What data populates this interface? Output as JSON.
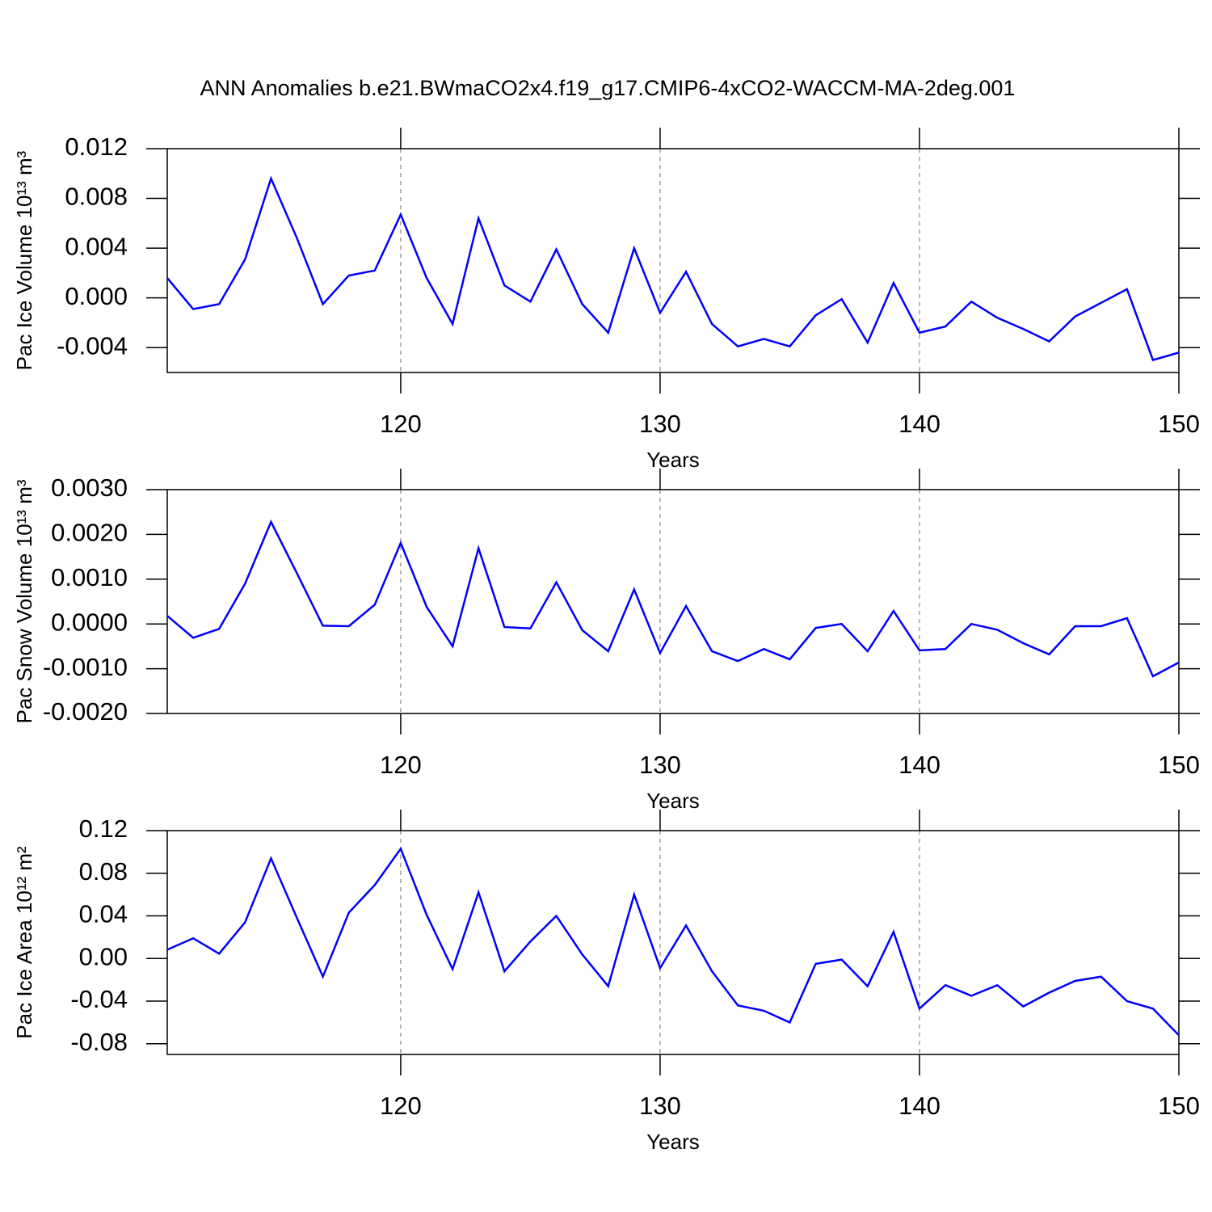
{
  "chart_data": [
    {
      "type": "line",
      "title": "ANN Anomalies b.e21.BWmaCO2x4.f19_g17.CMIP6-4xCO2-WACCM-MA-2deg.001",
      "xlabel": "Years",
      "ylabel": "Pac Ice Volume 10¹³ m³",
      "color": "#0000ff",
      "x": [
        111,
        112,
        113,
        114,
        115,
        116,
        117,
        118,
        119,
        120,
        121,
        122,
        123,
        124,
        125,
        126,
        127,
        128,
        129,
        130,
        131,
        132,
        133,
        134,
        135,
        136,
        137,
        138,
        139,
        140,
        141,
        142,
        143,
        144,
        145,
        146,
        147,
        148,
        149,
        150
      ],
      "values": [
        0.0016,
        -0.0009,
        -0.0005,
        0.0031,
        0.0096,
        0.0048,
        -0.0005,
        0.0018,
        0.0022,
        0.0067,
        0.0016,
        -0.0021,
        0.0064,
        0.001,
        -0.0003,
        0.0039,
        -0.0005,
        -0.0028,
        0.004,
        -0.0012,
        0.0021,
        -0.0021,
        -0.0039,
        -0.0033,
        -0.0039,
        -0.0014,
        -0.0001,
        -0.0036,
        0.0012,
        -0.0028,
        -0.0023,
        -0.0003,
        -0.0016,
        -0.0025,
        -0.0035,
        -0.0015,
        -0.0004,
        0.0007,
        -0.005,
        -0.0044
      ],
      "xlim": [
        111,
        150
      ],
      "xticks": [
        120,
        130,
        140,
        150
      ],
      "ylim": [
        -0.006,
        0.012
      ],
      "yticks": [
        {
          "value": 0.012,
          "label": "0.012"
        },
        {
          "value": 0.008,
          "label": "0.008"
        },
        {
          "value": 0.004,
          "label": "0.004"
        },
        {
          "value": 0,
          "label": "0.000"
        },
        {
          "value": -0.004,
          "label": "-0.004"
        }
      ],
      "grid": true
    },
    {
      "type": "line",
      "xlabel": "Years",
      "ylabel": "Pac Snow Volume 10¹³ m³",
      "color": "#0000ff",
      "x": [
        111,
        112,
        113,
        114,
        115,
        116,
        117,
        118,
        119,
        120,
        121,
        122,
        123,
        124,
        125,
        126,
        127,
        128,
        129,
        130,
        131,
        132,
        133,
        134,
        135,
        136,
        137,
        138,
        139,
        140,
        141,
        142,
        143,
        144,
        145,
        146,
        147,
        148,
        149,
        150
      ],
      "values": [
        0.00018,
        -0.00031,
        -0.00011,
        0.0009,
        0.00228,
        0.00113,
        -4e-05,
        -5e-05,
        0.00043,
        0.00181,
        0.00038,
        -0.0005,
        0.00169,
        -7e-05,
        -0.0001,
        0.00093,
        -0.00014,
        -0.00061,
        0.00077,
        -0.00065,
        0.0004,
        -0.00061,
        -0.00083,
        -0.00056,
        -0.00079,
        -9e-05,
        0.0,
        -0.00061,
        0.00029,
        -0.00059,
        -0.00056,
        0.0,
        -0.00013,
        -0.00043,
        -0.00068,
        -5e-05,
        -5e-05,
        0.00013,
        -0.00117,
        -0.00086
      ],
      "xlim": [
        111,
        150
      ],
      "xticks": [
        120,
        130,
        140,
        150
      ],
      "ylim": [
        -0.002,
        0.003
      ],
      "yticks": [
        {
          "value": 0.003,
          "label": "0.0030"
        },
        {
          "value": 0.002,
          "label": "0.0020"
        },
        {
          "value": 0.001,
          "label": "0.0010"
        },
        {
          "value": 0,
          "label": "0.0000"
        },
        {
          "value": -0.001,
          "label": "-0.0010"
        },
        {
          "value": -0.002,
          "label": "-0.0020"
        }
      ],
      "grid": true
    },
    {
      "type": "line",
      "xlabel": "Years",
      "ylabel": "Pac Ice Area 10¹² m²",
      "color": "#0000ff",
      "x": [
        111,
        112,
        113,
        114,
        115,
        116,
        117,
        118,
        119,
        120,
        121,
        122,
        123,
        124,
        125,
        126,
        127,
        128,
        129,
        130,
        131,
        132,
        133,
        134,
        135,
        136,
        137,
        138,
        139,
        140,
        141,
        142,
        143,
        144,
        145,
        146,
        147,
        148,
        149,
        150
      ],
      "values": [
        0.0083,
        0.019,
        0.0045,
        0.034,
        0.094,
        0.038,
        -0.017,
        0.043,
        0.069,
        0.103,
        0.041,
        -0.01,
        0.062,
        -0.012,
        0.016,
        0.04,
        0.0038,
        -0.026,
        0.06,
        -0.009,
        0.031,
        -0.012,
        -0.044,
        -0.049,
        -0.06,
        -0.005,
        -0.001,
        -0.026,
        0.025,
        -0.047,
        -0.025,
        -0.035,
        -0.025,
        -0.045,
        -0.032,
        -0.021,
        -0.017,
        -0.04,
        -0.047,
        -0.072
      ],
      "xlim": [
        111,
        150
      ],
      "xticks": [
        120,
        130,
        140,
        150
      ],
      "ylim": [
        -0.09,
        0.12
      ],
      "yticks": [
        0.12,
        0.08,
        0.04,
        {
          "value": 0,
          "label": "0.00"
        },
        -0.04,
        -0.08
      ],
      "grid": true
    }
  ]
}
